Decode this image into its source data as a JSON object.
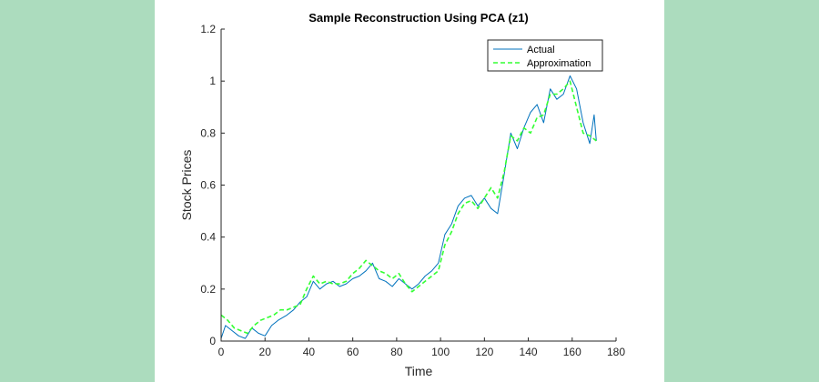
{
  "colors": {
    "side_background": "#acdcbe",
    "figure_background": "#ffffff",
    "actual": "#0072bd",
    "approximation": "#33ff33"
  },
  "chart_data": {
    "type": "line",
    "title": "Sample Reconstruction Using PCA (z1)",
    "xlabel": "Time",
    "ylabel": "Stock Prices",
    "xlim": [
      0,
      180
    ],
    "ylim": [
      0,
      1.2
    ],
    "xticks": [
      "0",
      "20",
      "40",
      "60",
      "80",
      "100",
      "120",
      "140",
      "160",
      "180"
    ],
    "yticks": [
      "0",
      "0.2",
      "0.4",
      "0.6",
      "0.8",
      "1",
      "1.2"
    ],
    "grid": false,
    "legend_position": "top-right",
    "series": [
      {
        "name": "Actual",
        "style": "solid",
        "x": [
          0,
          2,
          5,
          8,
          11,
          14,
          17,
          20,
          23,
          26,
          30,
          33,
          36,
          39,
          42,
          45,
          48,
          51,
          54,
          57,
          60,
          63,
          66,
          69,
          72,
          75,
          78,
          81,
          84,
          87,
          90,
          93,
          96,
          99,
          102,
          105,
          108,
          111,
          114,
          117,
          120,
          123,
          126,
          129,
          132,
          135,
          138,
          141,
          144,
          147,
          150,
          153,
          156,
          159,
          162,
          165,
          168,
          170,
          171
        ],
        "y": [
          0.01,
          0.06,
          0.04,
          0.02,
          0.01,
          0.05,
          0.03,
          0.02,
          0.06,
          0.08,
          0.1,
          0.12,
          0.15,
          0.17,
          0.23,
          0.2,
          0.22,
          0.23,
          0.21,
          0.22,
          0.24,
          0.25,
          0.27,
          0.3,
          0.24,
          0.23,
          0.21,
          0.24,
          0.22,
          0.2,
          0.22,
          0.25,
          0.27,
          0.3,
          0.41,
          0.45,
          0.52,
          0.55,
          0.56,
          0.52,
          0.55,
          0.51,
          0.49,
          0.64,
          0.8,
          0.74,
          0.82,
          0.88,
          0.91,
          0.84,
          0.97,
          0.93,
          0.95,
          1.02,
          0.97,
          0.84,
          0.76,
          0.87,
          0.77
        ]
      },
      {
        "name": "Approximation",
        "style": "dashed",
        "x": [
          0,
          3,
          6,
          9,
          12,
          15,
          18,
          21,
          24,
          27,
          30,
          33,
          36,
          39,
          42,
          45,
          48,
          51,
          54,
          57,
          60,
          63,
          66,
          69,
          72,
          75,
          78,
          81,
          84,
          87,
          90,
          93,
          96,
          99,
          102,
          105,
          108,
          111,
          114,
          117,
          120,
          123,
          126,
          129,
          132,
          135,
          138,
          141,
          144,
          147,
          150,
          153,
          156,
          159,
          162,
          165,
          168,
          171
        ],
        "y": [
          0.1,
          0.08,
          0.05,
          0.04,
          0.03,
          0.06,
          0.08,
          0.09,
          0.1,
          0.12,
          0.12,
          0.13,
          0.14,
          0.2,
          0.25,
          0.22,
          0.23,
          0.22,
          0.22,
          0.23,
          0.26,
          0.28,
          0.31,
          0.29,
          0.27,
          0.26,
          0.24,
          0.26,
          0.22,
          0.19,
          0.21,
          0.23,
          0.25,
          0.27,
          0.37,
          0.42,
          0.49,
          0.53,
          0.54,
          0.51,
          0.55,
          0.59,
          0.55,
          0.65,
          0.79,
          0.77,
          0.82,
          0.8,
          0.86,
          0.87,
          0.95,
          0.95,
          0.97,
          1.0,
          0.9,
          0.8,
          0.79,
          0.77
        ]
      }
    ]
  }
}
